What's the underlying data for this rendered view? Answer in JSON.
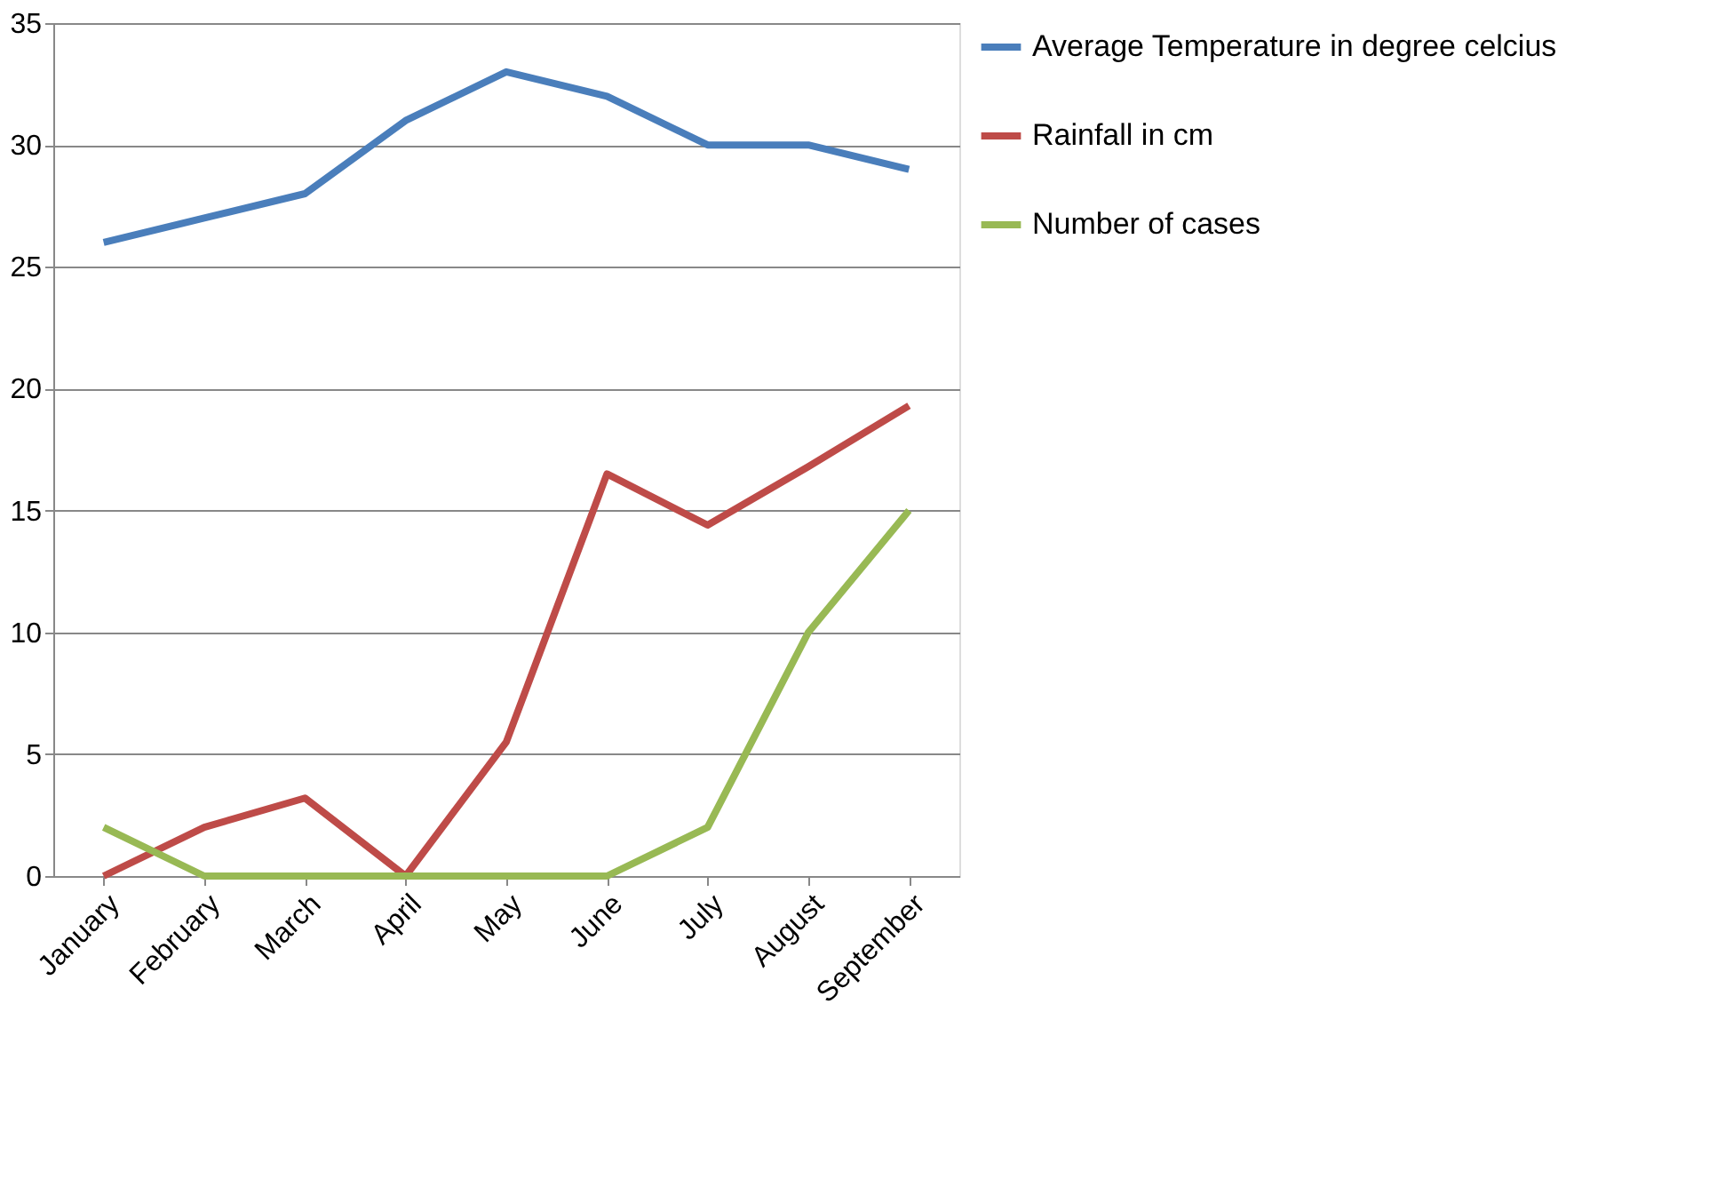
{
  "chart_data": {
    "type": "line",
    "categories": [
      "January",
      "February",
      "March",
      "April",
      "May",
      "June",
      "July",
      "August",
      "September"
    ],
    "series": [
      {
        "name": "Average Temperature in degree celcius",
        "color": "#4a7ebb",
        "values": [
          26,
          27,
          28,
          31,
          33,
          32,
          30,
          30,
          29
        ]
      },
      {
        "name": "Rainfall in cm",
        "color": "#be4b48",
        "values": [
          0,
          2,
          3.2,
          0,
          5.5,
          16.5,
          14.4,
          16.8,
          19.3
        ]
      },
      {
        "name": "Number of cases",
        "color": "#98b954",
        "values": [
          2,
          0,
          0,
          0,
          0,
          0,
          2,
          10,
          15
        ]
      }
    ],
    "ylim": [
      0,
      35
    ],
    "yticks": [
      0,
      5,
      10,
      15,
      20,
      25,
      30,
      35
    ],
    "grid": "y",
    "legend": "right",
    "marker": "none",
    "line_style": "solid"
  }
}
